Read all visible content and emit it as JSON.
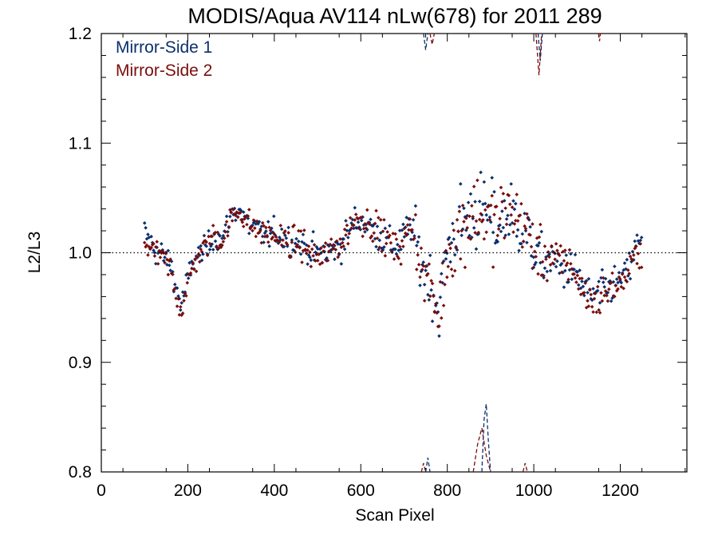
{
  "chart_data": {
    "type": "scatter",
    "title": "MODIS/Aqua AV114 nLw(678) for 2011 289",
    "xlabel": "Scan Pixel",
    "ylabel": "L2/L3",
    "xlim": [
      0,
      1354
    ],
    "ylim": [
      0.8,
      1.2
    ],
    "xticks": [
      {
        "value": 0,
        "label": "0"
      },
      {
        "value": 200,
        "label": "200"
      },
      {
        "value": 400,
        "label": "400"
      },
      {
        "value": 600,
        "label": "600"
      },
      {
        "value": 800,
        "label": "800"
      },
      {
        "value": 1000,
        "label": "1000"
      },
      {
        "value": 1200,
        "label": "1200"
      }
    ],
    "yticks": [
      {
        "value": 0.8,
        "label": "0.8"
      },
      {
        "value": 0.9,
        "label": "0.9"
      },
      {
        "value": 1.0,
        "label": "1.0"
      },
      {
        "value": 1.1,
        "label": "1.1"
      },
      {
        "value": 1.2,
        "label": "1.2"
      }
    ],
    "reference_line": {
      "y": 1.0,
      "style": "dotted",
      "color": "#000000"
    },
    "legend_position": "top-left",
    "grid": false,
    "series": [
      {
        "name": "Mirror-Side 1",
        "color": "#0a2f6e",
        "mean_curve": [
          [
            100,
            1.018
          ],
          [
            120,
            1.005
          ],
          [
            140,
            0.998
          ],
          [
            160,
            0.99
          ],
          [
            175,
            0.965
          ],
          [
            185,
            0.952
          ],
          [
            200,
            0.975
          ],
          [
            215,
            0.995
          ],
          [
            240,
            1.002
          ],
          [
            260,
            1.015
          ],
          [
            280,
            1.012
          ],
          [
            300,
            1.035
          ],
          [
            320,
            1.04
          ],
          [
            340,
            1.025
          ],
          [
            360,
            1.022
          ],
          [
            380,
            1.015
          ],
          [
            400,
            1.018
          ],
          [
            420,
            1.015
          ],
          [
            440,
            1.01
          ],
          [
            460,
            1.008
          ],
          [
            480,
            1.003
          ],
          [
            500,
            0.998
          ],
          [
            520,
            1.0
          ],
          [
            540,
            1.003
          ],
          [
            560,
            1.01
          ],
          [
            580,
            1.025
          ],
          [
            600,
            1.03
          ],
          [
            620,
            1.025
          ],
          [
            640,
            1.018
          ],
          [
            660,
            1.01
          ],
          [
            680,
            1.005
          ],
          [
            700,
            1.015
          ],
          [
            720,
            1.025
          ],
          [
            740,
            0.99
          ],
          [
            760,
            0.975
          ],
          [
            780,
            0.945
          ],
          [
            800,
            1.005
          ],
          [
            820,
            1.02
          ],
          [
            840,
            1.03
          ],
          [
            860,
            1.035
          ],
          [
            880,
            1.04
          ],
          [
            900,
            1.03
          ],
          [
            920,
            1.025
          ],
          [
            940,
            1.035
          ],
          [
            960,
            1.03
          ],
          [
            980,
            1.02
          ],
          [
            1000,
            1.0
          ],
          [
            1020,
            0.99
          ],
          [
            1040,
            0.995
          ],
          [
            1060,
            0.985
          ],
          [
            1080,
            0.985
          ],
          [
            1100,
            0.98
          ],
          [
            1120,
            0.965
          ],
          [
            1140,
            0.96
          ],
          [
            1160,
            0.965
          ],
          [
            1180,
            0.97
          ],
          [
            1200,
            0.975
          ],
          [
            1220,
            0.985
          ],
          [
            1240,
            1.01
          ],
          [
            1250,
            1.005
          ]
        ],
        "spread": [
          [
            100,
            0.015
          ],
          [
            300,
            0.012
          ],
          [
            700,
            0.018
          ],
          [
            760,
            0.03
          ],
          [
            840,
            0.04
          ],
          [
            960,
            0.035
          ],
          [
            1000,
            0.025
          ],
          [
            1100,
            0.02
          ],
          [
            1250,
            0.015
          ]
        ],
        "envelope": [
          [
            [
              750,
              0.8
            ],
            [
              755,
              0.813
            ],
            [
              760,
              0.8
            ]
          ],
          [
            [
              880,
              0.8
            ],
            [
              885,
              0.848
            ],
            [
              890,
              0.862
            ],
            [
              895,
              0.828
            ],
            [
              900,
              0.8
            ]
          ],
          [
            [
              745,
              1.2
            ],
            [
              750,
              1.185
            ],
            [
              755,
              1.2
            ]
          ],
          [
            [
              1010,
              1.2
            ],
            [
              1015,
              1.175
            ],
            [
              1020,
              1.2
            ]
          ]
        ]
      },
      {
        "name": "Mirror-Side 2",
        "color": "#7a0d0d",
        "mean_curve": [
          [
            100,
            1.012
          ],
          [
            120,
            1.0
          ],
          [
            140,
            0.995
          ],
          [
            160,
            0.985
          ],
          [
            175,
            0.96
          ],
          [
            185,
            0.948
          ],
          [
            200,
            0.97
          ],
          [
            215,
            0.992
          ],
          [
            240,
            1.005
          ],
          [
            260,
            1.018
          ],
          [
            280,
            1.01
          ],
          [
            300,
            1.032
          ],
          [
            320,
            1.038
          ],
          [
            340,
            1.028
          ],
          [
            360,
            1.02
          ],
          [
            380,
            1.018
          ],
          [
            400,
            1.015
          ],
          [
            420,
            1.012
          ],
          [
            440,
            1.008
          ],
          [
            460,
            1.01
          ],
          [
            480,
            1.0
          ],
          [
            500,
            0.995
          ],
          [
            520,
            0.998
          ],
          [
            540,
            1.005
          ],
          [
            560,
            1.012
          ],
          [
            580,
            1.028
          ],
          [
            600,
            1.032
          ],
          [
            620,
            1.028
          ],
          [
            640,
            1.02
          ],
          [
            660,
            1.012
          ],
          [
            680,
            1.002
          ],
          [
            700,
            1.01
          ],
          [
            720,
            1.03
          ],
          [
            740,
            0.985
          ],
          [
            760,
            0.97
          ],
          [
            780,
            0.94
          ],
          [
            800,
            1.0
          ],
          [
            820,
            1.015
          ],
          [
            840,
            1.025
          ],
          [
            860,
            1.04
          ],
          [
            880,
            1.035
          ],
          [
            900,
            1.025
          ],
          [
            920,
            1.03
          ],
          [
            940,
            1.04
          ],
          [
            960,
            1.035
          ],
          [
            980,
            1.025
          ],
          [
            1000,
            1.005
          ],
          [
            1020,
            0.995
          ],
          [
            1040,
            0.998
          ],
          [
            1060,
            0.99
          ],
          [
            1080,
            0.992
          ],
          [
            1100,
            0.978
          ],
          [
            1120,
            0.96
          ],
          [
            1140,
            0.955
          ],
          [
            1160,
            0.962
          ],
          [
            1180,
            0.968
          ],
          [
            1200,
            0.972
          ],
          [
            1220,
            0.98
          ],
          [
            1240,
            1.005
          ],
          [
            1250,
            1.0
          ]
        ],
        "spread": [
          [
            100,
            0.015
          ],
          [
            300,
            0.012
          ],
          [
            700,
            0.018
          ],
          [
            760,
            0.03
          ],
          [
            840,
            0.04
          ],
          [
            960,
            0.035
          ],
          [
            1000,
            0.025
          ],
          [
            1100,
            0.02
          ],
          [
            1250,
            0.015
          ]
        ],
        "envelope": [
          [
            [
              740,
              0.8
            ],
            [
              745,
              0.808
            ],
            [
              750,
              0.8
            ]
          ],
          [
            [
              860,
              0.8
            ],
            [
              870,
              0.825
            ],
            [
              880,
              0.84
            ],
            [
              890,
              0.815
            ],
            [
              900,
              0.8
            ]
          ],
          [
            [
              975,
              0.8
            ],
            [
              980,
              0.808
            ],
            [
              985,
              0.8
            ]
          ],
          [
            [
              760,
              1.2
            ],
            [
              765,
              1.19
            ],
            [
              770,
              1.2
            ]
          ],
          [
            [
              1005,
              1.2
            ],
            [
              1012,
              1.162
            ],
            [
              1018,
              1.2
            ]
          ],
          [
            [
              1150,
              1.2
            ],
            [
              1152,
              1.193
            ],
            [
              1154,
              1.2
            ]
          ]
        ]
      }
    ]
  }
}
